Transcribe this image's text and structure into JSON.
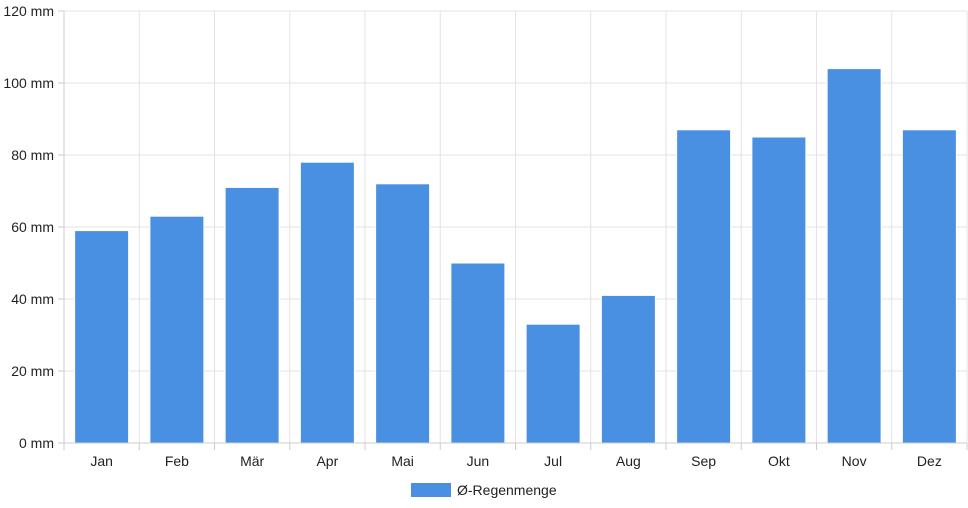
{
  "chart_data": {
    "type": "bar",
    "categories": [
      "Jan",
      "Feb",
      "Mär",
      "Apr",
      "Mai",
      "Jun",
      "Jul",
      "Aug",
      "Sep",
      "Okt",
      "Nov",
      "Dez"
    ],
    "series": [
      {
        "name": "Ø-Regenmenge",
        "values": [
          59,
          63,
          71,
          78,
          72,
          50,
          33,
          41,
          87,
          85,
          104,
          87
        ],
        "color": "#4a90e2"
      }
    ],
    "y_unit": "mm",
    "ylim": [
      0,
      120
    ],
    "yticks": [
      "0 mm",
      "20 mm",
      "40 mm",
      "60 mm",
      "80 mm",
      "100 mm",
      "120 mm"
    ],
    "grid": true,
    "legend_position": "bottom"
  }
}
